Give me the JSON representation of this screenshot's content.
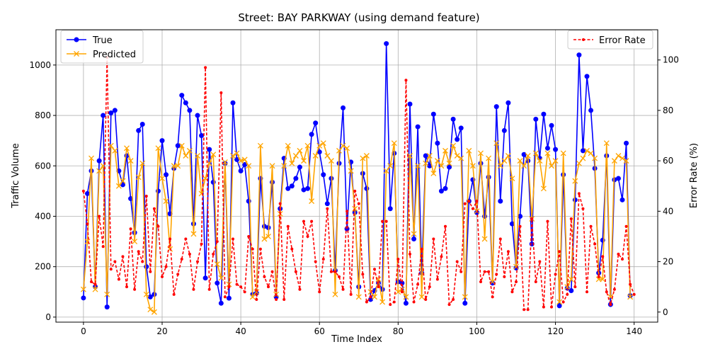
{
  "chart_data": {
    "type": "line",
    "title": "Street: BAY PARKWAY (using demand feature)",
    "xlabel": "Time Index",
    "ylabel_left": "Traffic Volume",
    "ylabel_right": "Error Rate (%)",
    "xlim": [
      -7,
      146
    ],
    "ylim_left": [
      -20,
      1140
    ],
    "ylim_right": [
      -4,
      112
    ],
    "x_ticks": [
      0,
      20,
      40,
      60,
      80,
      100,
      120,
      140
    ],
    "y_ticks_left": [
      0,
      200,
      400,
      600,
      800,
      1000
    ],
    "y_ticks_right": [
      0,
      20,
      40,
      60,
      80,
      100
    ],
    "grid": true,
    "legend_left_position": "upper-left",
    "legend_right_position": "upper-right",
    "colors": {
      "true": "#0000ff",
      "predicted": "#ffa500",
      "error": "#ff0000"
    },
    "series": [
      {
        "name": "True",
        "axis": "left",
        "values": [
          76,
          490,
          580,
          120,
          620,
          800,
          40,
          810,
          820,
          580,
          525,
          640,
          470,
          335,
          740,
          765,
          200,
          80,
          90,
          500,
          700,
          565,
          410,
          590,
          680,
          880,
          850,
          820,
          370,
          800,
          720,
          155,
          665,
          535,
          135,
          55,
          610,
          75,
          850,
          625,
          580,
          605,
          460,
          90,
          95,
          550,
          360,
          355,
          535,
          80,
          430,
          630,
          510,
          520,
          550,
          595,
          505,
          510,
          725,
          770,
          655,
          565,
          450,
          550,
          185,
          610,
          830,
          350,
          615,
          415,
          120,
          570,
          510,
          70,
          105,
          135,
          110,
          1085,
          430,
          650,
          140,
          135,
          55,
          845,
          310,
          755,
          175,
          640,
          600,
          805,
          690,
          500,
          510,
          595,
          785,
          705,
          750,
          55,
          460,
          545,
          415,
          610,
          400,
          555,
          135,
          835,
          460,
          740,
          850,
          370,
          195,
          400,
          645,
          620,
          290,
          785,
          630,
          805,
          670,
          760,
          665,
          45,
          565,
          115,
          105,
          465,
          1040,
          660,
          955,
          820,
          590,
          175,
          305,
          640,
          50,
          545,
          550,
          465,
          690,
          85
        ]
      },
      {
        "name": "Predicted",
        "axis": "left",
        "values": [
          110,
          300,
          630,
          110,
          580,
          600,
          90,
          680,
          660,
          520,
          540,
          670,
          620,
          300,
          555,
          610,
          90,
          30,
          20,
          670,
          550,
          460,
          270,
          600,
          600,
          680,
          640,
          660,
          330,
          640,
          490,
          550,
          610,
          645,
          210,
          155,
          615,
          130,
          640,
          650,
          620,
          625,
          600,
          80,
          100,
          680,
          310,
          320,
          600,
          90,
          410,
          600,
          680,
          610,
          640,
          660,
          620,
          680,
          460,
          640,
          680,
          690,
          640,
          620,
          90,
          660,
          680,
          670,
          580,
          430,
          80,
          630,
          640,
          100,
          80,
          150,
          60,
          580,
          600,
          690,
          100,
          110,
          80,
          640,
          330,
          600,
          80,
          610,
          640,
          570,
          620,
          600,
          660,
          610,
          680,
          640,
          630,
          80,
          660,
          600,
          420,
          650,
          310,
          630,
          140,
          690,
          600,
          620,
          640,
          550,
          200,
          620,
          600,
          640,
          390,
          650,
          620,
          510,
          650,
          600,
          620,
          60,
          650,
          120,
          150,
          540,
          610,
          630,
          660,
          650,
          630,
          150,
          150,
          690,
          80,
          620,
          640,
          630,
          620,
          80
        ]
      },
      {
        "name": "Error Rate",
        "axis": "right",
        "values": [
          48,
          35,
          12,
          11,
          38,
          26,
          101,
          17,
          20,
          13,
          22,
          10,
          33,
          9,
          24,
          20,
          46,
          16,
          41,
          34,
          14,
          18,
          29,
          7,
          15,
          21,
          29,
          23,
          9,
          20,
          27,
          97,
          9,
          23,
          28,
          87,
          6,
          10,
          29,
          11,
          10,
          8,
          30,
          25,
          5,
          25,
          14,
          10,
          16,
          5,
          43,
          5,
          34,
          25,
          16,
          9,
          36,
          30,
          36,
          20,
          8,
          21,
          41,
          16,
          16,
          14,
          9,
          40,
          7,
          48,
          43,
          15,
          4,
          6,
          17,
          10,
          36,
          36,
          3,
          4,
          21,
          8,
          92,
          23,
          4,
          11,
          25,
          5,
          10,
          29,
          13,
          22,
          34,
          3,
          5,
          20,
          16,
          43,
          44,
          41,
          44,
          12,
          16,
          16,
          6,
          15,
          29,
          14,
          24,
          8,
          12,
          34,
          1,
          1,
          37,
          12,
          20,
          2,
          36,
          2,
          15,
          24,
          4,
          7,
          37,
          10,
          47,
          41,
          8,
          34,
          27,
          14,
          22,
          8,
          3,
          9,
          23,
          21,
          34,
          11,
          7
        ]
      }
    ]
  }
}
